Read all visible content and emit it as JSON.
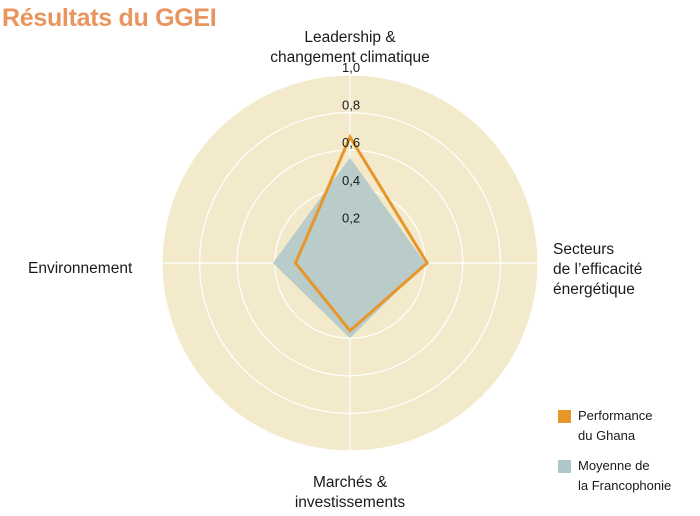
{
  "title": "Résultats du GGEI",
  "colors": {
    "background_disc": "#f3eacb",
    "grid": "#ffffff",
    "ghana": "#e8962a",
    "francophonie": "#aec7c9"
  },
  "chart_data": {
    "type": "radar",
    "title": "Résultats du GGEI",
    "axes": [
      {
        "lines": [
          "Leadership &",
          "changement climatique"
        ]
      },
      {
        "lines": [
          "Secteurs",
          "de l’efficacité",
          "énergétique"
        ]
      },
      {
        "lines": [
          "Marchés &",
          "investissements"
        ]
      },
      {
        "lines": [
          "Environnement"
        ]
      }
    ],
    "rlim": [
      0,
      1.0
    ],
    "ticks": [
      "0,2",
      "0,4",
      "0,6",
      "0,8",
      "1,0"
    ],
    "tick_values": [
      0.2,
      0.4,
      0.6,
      0.8,
      1.0
    ],
    "grid": true,
    "series": [
      {
        "name": "Moyenne de la Francophonie",
        "label_lines": [
          "Moyenne de",
          "la Francophonie"
        ],
        "color": "#aec7c9",
        "fill": true,
        "values": [
          0.56,
          0.4,
          0.4,
          0.41
        ]
      },
      {
        "name": "Performance du Ghana",
        "label_lines": [
          "Performance",
          "du Ghana"
        ],
        "color": "#e8962a",
        "fill": false,
        "values": [
          0.67,
          0.41,
          0.36,
          0.29
        ]
      }
    ],
    "legend": "bottom-right"
  }
}
